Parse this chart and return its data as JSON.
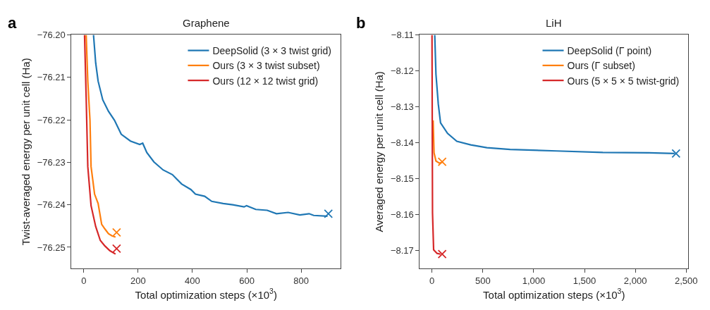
{
  "chart_data": [
    {
      "type": "line",
      "title": "Graphene",
      "annotations": [
        "a"
      ],
      "xlabel": "Total optimization steps (×10$^{3}$)",
      "ylabel": "Twist-averaged energy per unit cell (Ha)",
      "xlim": [
        -45,
        945
      ],
      "xticks": [
        0,
        200,
        400,
        600,
        800
      ],
      "ylim": [
        -76.255,
        -76.2
      ],
      "yticks": [
        {
          "value": -76.2,
          "label": "−76.20"
        },
        {
          "value": -76.21,
          "label": "−76.21"
        },
        {
          "value": -76.22,
          "label": "−76.22"
        },
        {
          "value": -76.23,
          "label": "−76.23"
        },
        {
          "value": -76.24,
          "label": "−76.24"
        },
        {
          "value": -76.25,
          "label": "−76.25"
        }
      ],
      "grid": false,
      "legend": "top right",
      "line_style": "solid",
      "series": [
        {
          "name": "DeepSolid (3 × 3 twist grid)",
          "color": "#1f77b4",
          "marker": "none",
          "x": [
            36,
            44,
            53,
            70,
            91,
            113,
            138,
            172,
            206,
            217,
            232,
            258,
            292,
            326,
            360,
            394,
            411,
            445,
            471,
            513,
            548,
            590,
            599,
            633,
            675,
            709,
            752,
            795,
            829,
            846,
            897
          ],
          "values": [
            -76.2,
            -76.2066,
            -76.2109,
            -76.2153,
            -76.218,
            -76.2201,
            -76.2234,
            -76.225,
            -76.2258,
            -76.2255,
            -76.2277,
            -76.2299,
            -76.2318,
            -76.2329,
            -76.2351,
            -76.2364,
            -76.2375,
            -76.238,
            -76.2392,
            -76.2397,
            -76.24,
            -76.2405,
            -76.2402,
            -76.2411,
            -76.2413,
            -76.2421,
            -76.2418,
            -76.2424,
            -76.2421,
            -76.2425,
            -76.2427
          ]
        },
        {
          "name": "Ours (3 × 3 twist subset)",
          "color": "#ff7f0e",
          "marker": "none",
          "x": [
            9,
            15,
            23,
            27,
            40,
            53,
            66,
            78,
            91,
            104,
            117
          ],
          "values": [
            -76.2,
            -76.2109,
            -76.2201,
            -76.231,
            -76.2375,
            -76.2397,
            -76.2446,
            -76.2457,
            -76.2468,
            -76.2473,
            -76.2476
          ]
        },
        {
          "name": "Ours (12 × 12 twist grid)",
          "color": "#d62728",
          "marker": "none",
          "x": [
            3,
            9,
            15,
            27,
            44,
            61,
            78,
            96,
            117
          ],
          "values": [
            -76.2,
            -76.2147,
            -76.231,
            -76.2402,
            -76.2451,
            -76.2484,
            -76.2497,
            -76.2508,
            -76.2516
          ]
        },
        {
          "color": "#1f77b4",
          "type": "scatter",
          "marker": "cross",
          "x": [
            900
          ],
          "values": [
            -76.2421
          ]
        },
        {
          "color": "#ff7f0e",
          "type": "scatter",
          "marker": "cross",
          "x": [
            121
          ],
          "values": [
            -76.2465
          ]
        },
        {
          "color": "#d62728",
          "type": "scatter",
          "marker": "cross",
          "x": [
            121
          ],
          "values": [
            -76.2503
          ]
        }
      ]
    },
    {
      "type": "line",
      "title": "LiH",
      "annotations": [
        "b"
      ],
      "xlabel": "Total optimization steps (×10$^{3}$)",
      "ylabel": "Averaged energy per unit cell (Ha)",
      "xlim": [
        -120,
        2520
      ],
      "xticks": [
        0,
        500,
        {
          "value": 1000,
          "label": "1,000"
        },
        {
          "value": 1500,
          "label": "1,500"
        },
        {
          "value": 2000,
          "label": "2,000"
        },
        {
          "value": 2500,
          "label": "2,500"
        }
      ],
      "ylim": [
        -8.175,
        -8.11
      ],
      "yticks": [
        {
          "value": -8.11,
          "label": "−8.11"
        },
        {
          "value": -8.12,
          "label": "−8.12"
        },
        {
          "value": -8.13,
          "label": "−8.13"
        },
        {
          "value": -8.14,
          "label": "−8.14"
        },
        {
          "value": -8.15,
          "label": "−8.15"
        },
        {
          "value": -8.16,
          "label": "−8.16"
        },
        {
          "value": -8.17,
          "label": "−8.17"
        }
      ],
      "grid": false,
      "legend": "top right",
      "line_style": "solid",
      "series": [
        {
          "name": "DeepSolid (Γ point)",
          "color": "#1f77b4",
          "marker": "none",
          "x": [
            27,
            39,
            62,
            84,
            153,
            244,
            381,
            540,
            768,
            1224,
            1680,
            2135,
            2386
          ],
          "values": [
            -8.11,
            -8.121,
            -8.1293,
            -8.1345,
            -8.1374,
            -8.1396,
            -8.1406,
            -8.1414,
            -8.1419,
            -8.1423,
            -8.1427,
            -8.1428,
            -8.143
          ]
        },
        {
          "name": "Ours (Γ subset)",
          "color": "#ff7f0e",
          "marker": "none",
          "x": [
            11,
            20,
            39,
            73,
            107
          ],
          "values": [
            -8.1338,
            -8.1428,
            -8.1451,
            -8.1457,
            -8.1454
          ]
        },
        {
          "name": "Ours (5 × 5 × 5 twist-grid)",
          "color": "#d62728",
          "marker": "none",
          "x": [
            0,
            5,
            16,
            50,
            84
          ],
          "values": [
            -8.11,
            -8.1595,
            -8.1698,
            -8.1708,
            -8.171
          ]
        },
        {
          "color": "#1f77b4",
          "type": "scatter",
          "marker": "cross",
          "x": [
            2400
          ],
          "values": [
            -8.143
          ]
        },
        {
          "color": "#ff7f0e",
          "type": "scatter",
          "marker": "cross",
          "x": [
            100
          ],
          "values": [
            -8.1453
          ]
        },
        {
          "color": "#d62728",
          "type": "scatter",
          "marker": "cross",
          "x": [
            100
          ],
          "values": [
            -8.171
          ]
        }
      ]
    }
  ]
}
